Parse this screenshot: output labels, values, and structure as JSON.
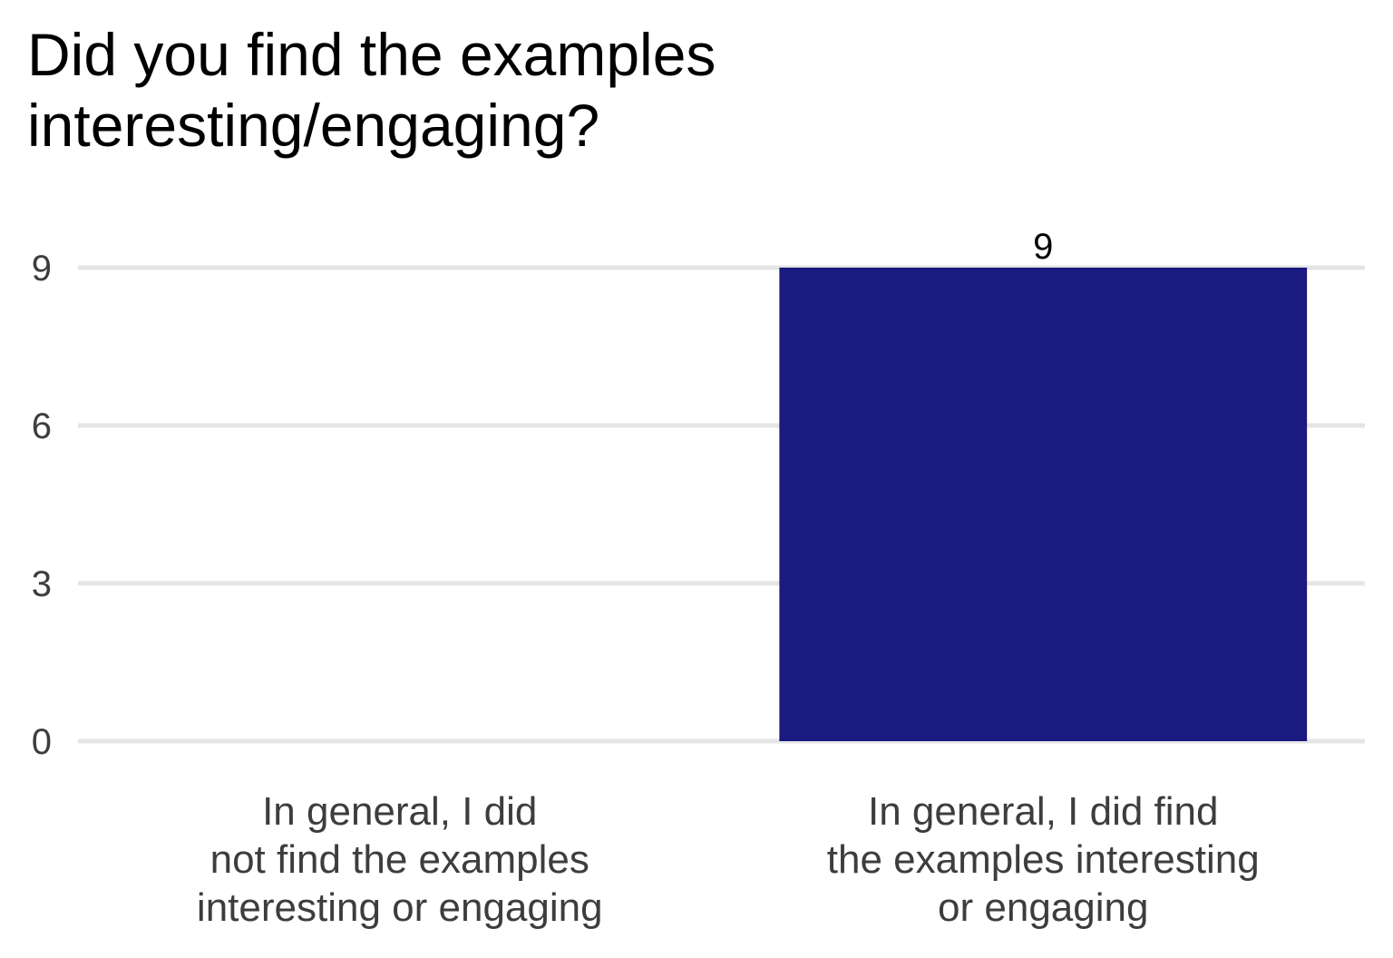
{
  "chart_data": {
    "type": "bar",
    "title_lines": [
      "Did you find the examples",
      "interesting/engaging?"
    ],
    "categories": [
      [
        "In general, I did",
        "not find the examples",
        "interesting or engaging"
      ],
      [
        "In general, I did find",
        "the examples interesting",
        "or engaging"
      ]
    ],
    "values": [
      0,
      9
    ],
    "data_labels": [
      "",
      "9"
    ],
    "y_ticks": [
      0,
      3,
      6,
      9
    ],
    "ylim": [
      0,
      9
    ],
    "grid": true,
    "colors": {
      "bar": "#1a1a80",
      "grid": "#e5e5e5"
    }
  }
}
